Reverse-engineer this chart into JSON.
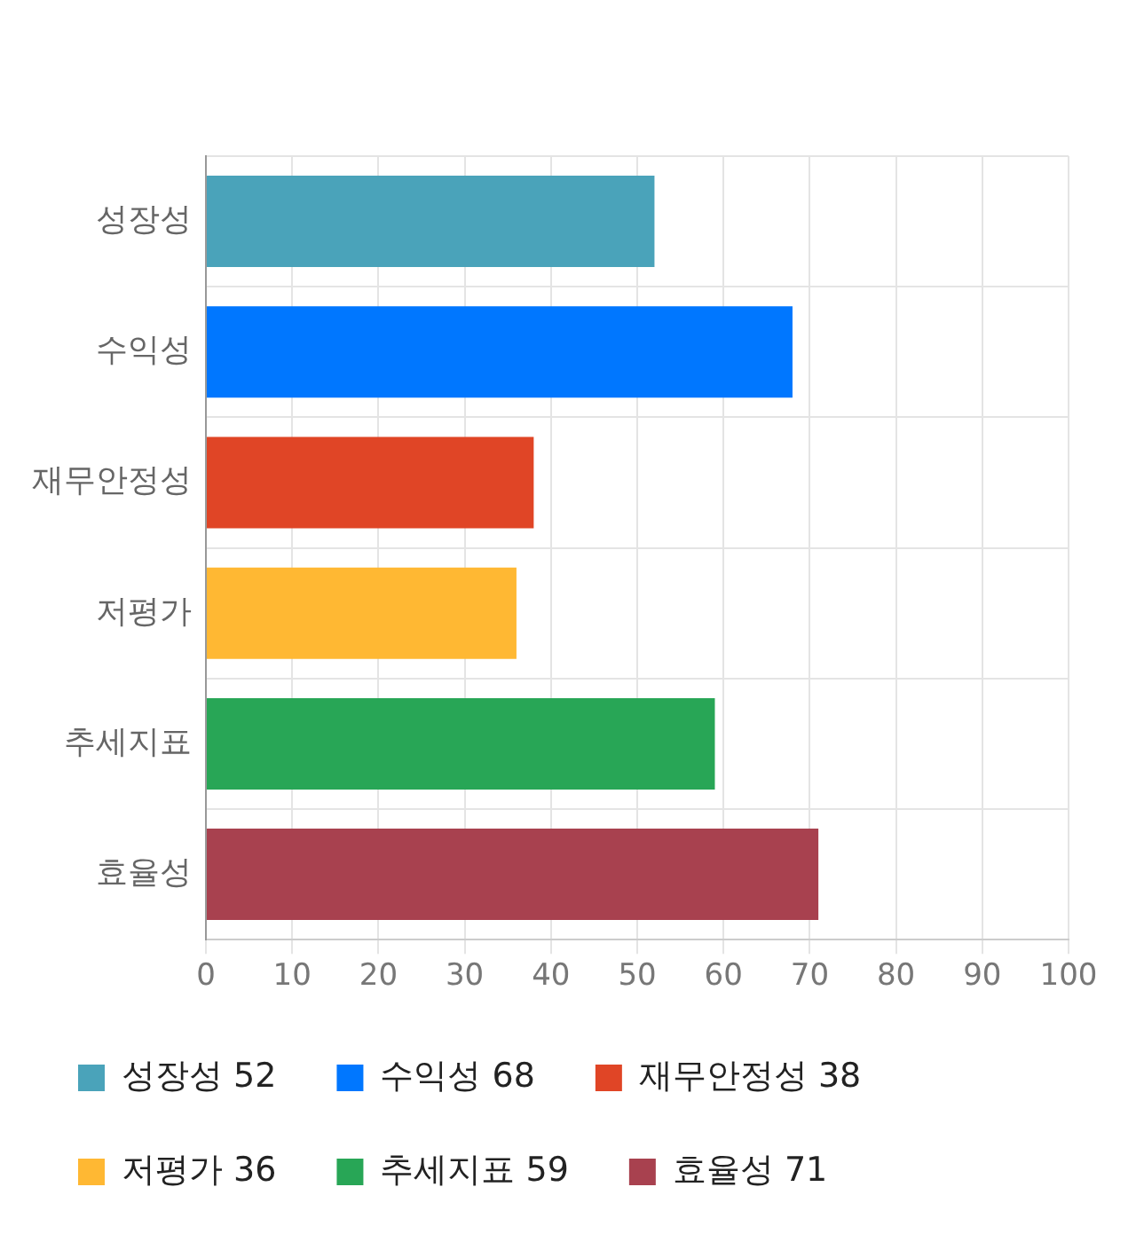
{
  "chart_data": {
    "type": "bar",
    "orientation": "horizontal",
    "stacked": true,
    "categories": [
      "성장성",
      "수익성",
      "재무안정성",
      "저평가",
      "추세지표",
      "효율성"
    ],
    "series": [
      {
        "name": "성장성 52",
        "color": "#4aa3ba",
        "values": [
          52,
          null,
          null,
          null,
          null,
          null
        ]
      },
      {
        "name": "수익성 68",
        "color": "#0077ff",
        "values": [
          null,
          68,
          null,
          null,
          null,
          null
        ]
      },
      {
        "name": "재무안정성 38",
        "color": "#e04526",
        "values": [
          null,
          null,
          38,
          null,
          null,
          null
        ]
      },
      {
        "name": "저평가 36",
        "color": "#ffb833",
        "values": [
          null,
          null,
          null,
          36,
          null,
          null
        ]
      },
      {
        "name": "추세지표 59",
        "color": "#28a656",
        "values": [
          null,
          null,
          null,
          null,
          59,
          null
        ]
      },
      {
        "name": "효율성 71",
        "color": "#a8414f",
        "values": [
          null,
          null,
          null,
          null,
          null,
          71
        ]
      }
    ],
    "xlim": [
      0,
      100
    ],
    "xticks": [
      0,
      10,
      20,
      30,
      40,
      50,
      60,
      70,
      80,
      90,
      100
    ],
    "grid": true,
    "legend": "bottom"
  }
}
